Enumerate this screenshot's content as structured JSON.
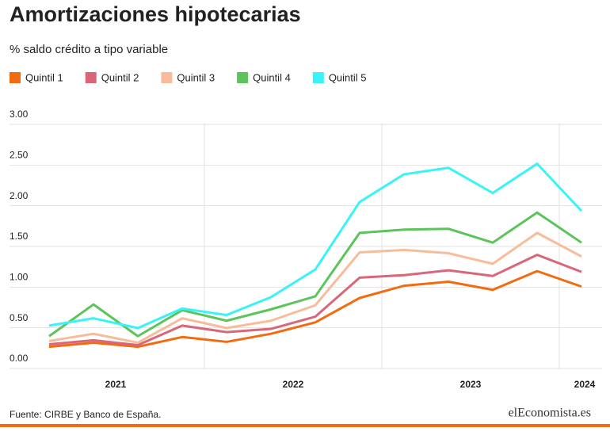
{
  "chart_data": {
    "type": "line",
    "title": "Amortizaciones hipotecarias",
    "subtitle": "% saldo crédito a tipo variable",
    "source": "Fuente: CIRBE y Banco de España.",
    "logo": "elEconomista.es",
    "categories": [
      null,
      null,
      null,
      null,
      null,
      null,
      null,
      null,
      null,
      null,
      null,
      null,
      null
    ],
    "year_labels": [
      "2021",
      "2022",
      "2023",
      "2024"
    ],
    "ylim": [
      0,
      3
    ],
    "yticks": [
      {
        "value": 0,
        "label": "0.00"
      },
      {
        "value": 0.5,
        "label": "0.50"
      },
      {
        "value": 1,
        "label": "1.00"
      },
      {
        "value": 1.5,
        "label": "1.50"
      },
      {
        "value": 2,
        "label": "2.00"
      },
      {
        "value": 2.5,
        "label": "2.50"
      },
      {
        "value": 3,
        "label": "3.00"
      }
    ],
    "grid": true,
    "series": [
      {
        "name": "Quintil 1",
        "color": "#f26b10",
        "values": [
          0.15,
          0.2,
          0.15,
          0.27,
          0.21,
          0.31,
          0.45,
          0.75,
          0.9,
          0.95,
          0.85,
          1.08,
          0.89
        ]
      },
      {
        "name": "Quintil 2",
        "color": "#d9677a",
        "values": [
          0.18,
          0.23,
          0.17,
          0.41,
          0.33,
          0.37,
          0.52,
          1.0,
          1.03,
          1.09,
          1.02,
          1.28,
          1.07
        ]
      },
      {
        "name": "Quintil 3",
        "color": "#f7bc9a",
        "values": [
          0.22,
          0.31,
          0.2,
          0.5,
          0.38,
          0.47,
          0.66,
          1.31,
          1.34,
          1.3,
          1.17,
          1.55,
          1.26
        ]
      },
      {
        "name": "Quintil 4",
        "color": "#5cc45a",
        "values": [
          0.28,
          0.67,
          0.28,
          0.6,
          0.47,
          0.61,
          0.77,
          1.55,
          1.59,
          1.6,
          1.43,
          1.8,
          1.43
        ]
      },
      {
        "name": "Quintil 5",
        "color": "#3af3f7",
        "values": [
          0.41,
          0.5,
          0.38,
          0.62,
          0.54,
          0.76,
          1.1,
          1.93,
          2.27,
          2.35,
          2.04,
          2.4,
          1.82
        ]
      }
    ]
  }
}
